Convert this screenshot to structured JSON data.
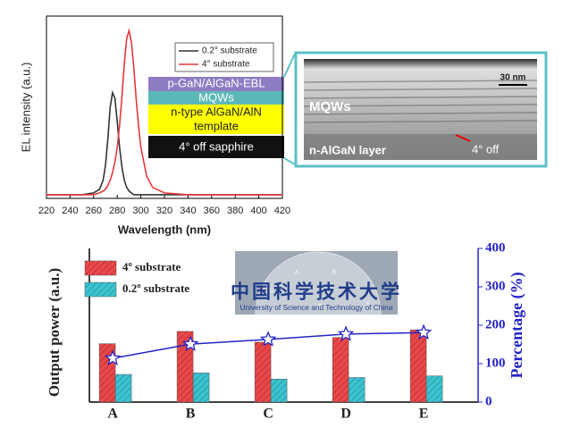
{
  "chart_data": [
    {
      "type": "line",
      "ylabel": "EL intensity (a.u.)",
      "xlabel": "Wavelength (nm)",
      "x": [
        220,
        250,
        260,
        265,
        268,
        270,
        272,
        274,
        276,
        278,
        280,
        282,
        284,
        286,
        288,
        290,
        292,
        294,
        296,
        298,
        300,
        305,
        310,
        320,
        340,
        420
      ],
      "series": [
        {
          "name": "0.2° substrate",
          "color": "#333333",
          "values": [
            0.02,
            0.02,
            0.03,
            0.05,
            0.1,
            0.18,
            0.32,
            0.5,
            0.58,
            0.55,
            0.42,
            0.28,
            0.17,
            0.1,
            0.06,
            0.04,
            0.03,
            0.02,
            0.02,
            0.02,
            0.02,
            0.02,
            0.02,
            0.02,
            0.02,
            0.02
          ]
        },
        {
          "name": "4° substrate",
          "color": "#e8383b",
          "values": [
            0.02,
            0.02,
            0.02,
            0.03,
            0.04,
            0.05,
            0.07,
            0.1,
            0.14,
            0.2,
            0.28,
            0.4,
            0.56,
            0.74,
            0.88,
            0.92,
            0.86,
            0.72,
            0.55,
            0.4,
            0.28,
            0.12,
            0.06,
            0.03,
            0.02,
            0.02
          ]
        }
      ],
      "xlim": [
        220,
        420
      ],
      "xticks": [
        220,
        240,
        260,
        280,
        300,
        320,
        340,
        360,
        380,
        400,
        420
      ],
      "ylim": [
        0,
        1
      ]
    },
    {
      "type": "bar",
      "ylabel": "Output power (a.u.)",
      "y2label": "Percentage (%)",
      "categories": [
        "A",
        "B",
        "C",
        "D",
        "E"
      ],
      "series": [
        {
          "name": "4º substrate",
          "color": "#e8484a",
          "values": [
            3.8,
            4.6,
            3.9,
            4.2,
            4.7
          ]
        },
        {
          "name": "0.2º substrate",
          "color": "#3cc3cf",
          "values": [
            1.8,
            1.9,
            1.5,
            1.6,
            1.7
          ]
        },
        {
          "name": "Percentage",
          "color": "#2323c8",
          "axis": "y2",
          "values": [
            114,
            151,
            163,
            177,
            181
          ]
        }
      ],
      "ylim": [
        0,
        10
      ],
      "y2lim": [
        0,
        400
      ],
      "y2ticks": [
        0,
        100,
        200,
        300,
        400
      ]
    }
  ],
  "schematic": {
    "layers": [
      "p-GaN/AlGaN-EBL",
      "MQWs",
      "n-type AlGaN/AlN",
      "template",
      "4°  off sapphire"
    ]
  },
  "micrograph": {
    "scale": "30 nm",
    "layer1": "MQWs",
    "layer2": "n-AlGaN layer",
    "angle": "4°  off"
  },
  "inset": {
    "letters": [
      "A",
      "B",
      "C",
      "D",
      "E"
    ],
    "logo": "中国科学技术大学",
    "university": "University of Science and Technology of China"
  }
}
